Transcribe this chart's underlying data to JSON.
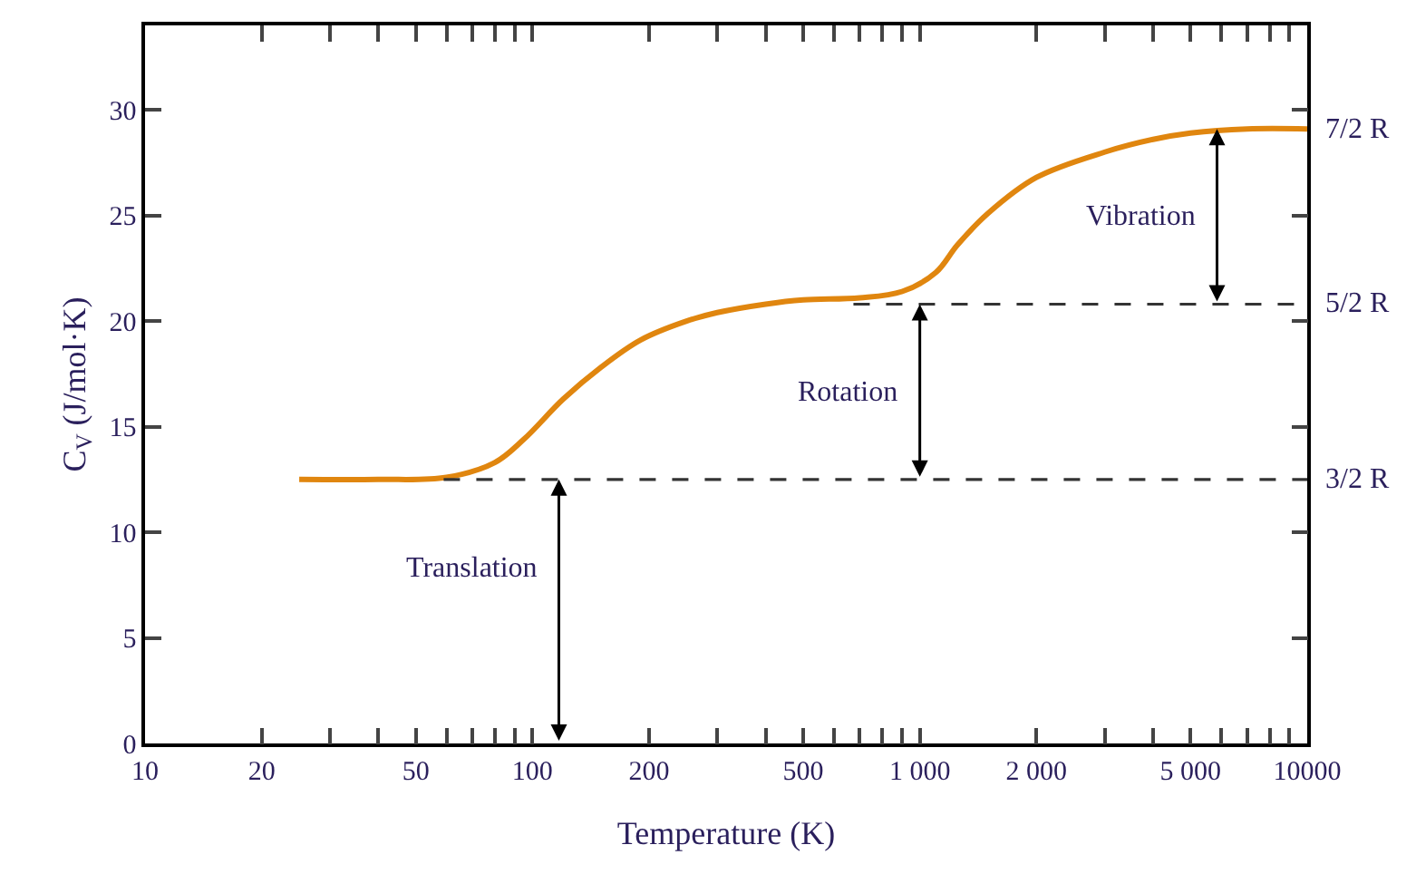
{
  "chart_data": {
    "type": "line",
    "xlabel": "Temperature (K)",
    "ylabel": "C$_{V}$ (J/mol·K)",
    "log": "x",
    "marker": "none",
    "xlim": [
      10,
      10000
    ],
    "ylim": [
      0,
      34
    ],
    "xticks": [
      10,
      20,
      {
        "value": 30,
        "label": null
      },
      {
        "value": 40,
        "label": null
      },
      50,
      {
        "value": 60,
        "label": null
      },
      {
        "value": 70,
        "label": null
      },
      {
        "value": 80,
        "label": null
      },
      {
        "value": 90,
        "label": null
      },
      100,
      200,
      {
        "value": 300,
        "label": null
      },
      {
        "value": 400,
        "label": null
      },
      500,
      {
        "value": 600,
        "label": null
      },
      {
        "value": 700,
        "label": null
      },
      {
        "value": 800,
        "label": null
      },
      {
        "value": 900,
        "label": null
      },
      {
        "value": 1000,
        "label": "1 000"
      },
      {
        "value": 2000,
        "label": "2 000"
      },
      {
        "value": 3000,
        "label": null
      },
      {
        "value": 4000,
        "label": null
      },
      {
        "value": 5000,
        "label": "5 000"
      },
      {
        "value": 6000,
        "label": null
      },
      {
        "value": 7000,
        "label": null
      },
      {
        "value": 8000,
        "label": null
      },
      {
        "value": 9000,
        "label": null
      },
      10000
    ],
    "yticks": [
      0,
      5,
      10,
      15,
      20,
      25,
      30
    ],
    "series": [
      {
        "color": "#e0860f",
        "line_style": "solid",
        "x": [
          25,
          40,
          60,
          80,
          95,
          120,
          150,
          190,
          250,
          300,
          400,
          500,
          700,
          900,
          1100,
          1250,
          1500,
          2000,
          3000,
          4000,
          5000,
          7000,
          10000
        ],
        "values": [
          12.5,
          12.5,
          12.6,
          13.3,
          14.4,
          16.3,
          17.8,
          19.1,
          20.0,
          20.4,
          20.8,
          21.0,
          21.1,
          21.4,
          22.3,
          23.6,
          25.1,
          26.8,
          28.0,
          28.6,
          28.9,
          29.1,
          29.1
        ]
      },
      {
        "color": "#333333",
        "line_style": "dashed",
        "x": [
          59,
          10000
        ],
        "values": [
          12.5,
          12.5
        ]
      },
      {
        "color": "#333333",
        "line_style": "dashed",
        "x": [
          674,
          10000
        ],
        "values": [
          20.8,
          20.8
        ]
      }
    ],
    "annotations": [
      {
        "text": "Translation",
        "x": 117,
        "y": 12.5
      },
      {
        "text": "Rotation",
        "x": 1000,
        "y": 20.8
      },
      {
        "text": "Vibration",
        "x": 5850,
        "y": 29.1
      },
      {
        "text": "3/2 R",
        "x": 10000,
        "y": 12.5
      },
      {
        "text": "5/2 R",
        "x": 10000,
        "y": 20.8
      },
      {
        "text": "7/2 R",
        "x": 10000,
        "y": 29.1
      }
    ]
  }
}
